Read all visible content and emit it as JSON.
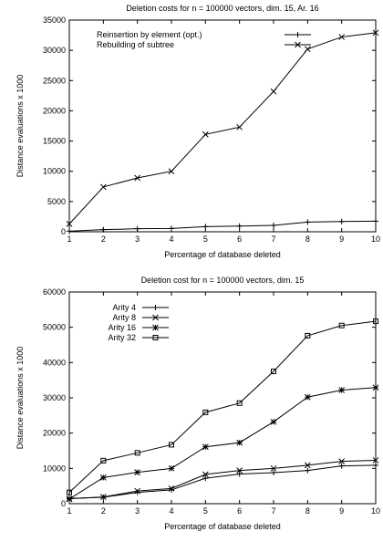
{
  "chart_data": [
    {
      "type": "line",
      "title": "Deletion costs for n = 100000 vectors, dim. 15, Ar. 16",
      "xlabel": "Percentage of database deleted",
      "ylabel": "Distance evaluations  x 1000",
      "x": [
        1,
        2,
        3,
        4,
        5,
        6,
        7,
        8,
        9,
        10
      ],
      "xlim": [
        1,
        10
      ],
      "ylim": [
        0,
        35000
      ],
      "yticks": [
        0,
        5000,
        10000,
        15000,
        20000,
        25000,
        30000,
        35000
      ],
      "grid": false,
      "legend_position": "top-right",
      "series": [
        {
          "name": "Reinsertion by element (opt.)",
          "marker": "plus",
          "values": [
            100,
            350,
            500,
            550,
            850,
            950,
            1050,
            1600,
            1700,
            1750
          ]
        },
        {
          "name": "Rebuilding of subtree",
          "marker": "cross",
          "values": [
            1300,
            7400,
            8900,
            10000,
            16100,
            17300,
            23200,
            30200,
            32200,
            32900
          ]
        }
      ]
    },
    {
      "type": "line",
      "title": "Deletion cost for n = 100000 vectors, dim. 15",
      "xlabel": "Percentage of database deleted",
      "ylabel": "Distance evaluations  x 1000",
      "x": [
        1,
        2,
        3,
        4,
        5,
        6,
        7,
        8,
        9,
        10
      ],
      "xlim": [
        1,
        10
      ],
      "ylim": [
        0,
        60000
      ],
      "yticks": [
        0,
        10000,
        20000,
        30000,
        40000,
        50000,
        60000
      ],
      "grid": false,
      "legend_position": "top-left",
      "series": [
        {
          "name": "Arity 4",
          "marker": "plus",
          "values": [
            1500,
            1800,
            3200,
            3900,
            7200,
            8400,
            8800,
            9400,
            10700,
            10900
          ]
        },
        {
          "name": "Arity 8",
          "marker": "cross",
          "values": [
            1400,
            1900,
            3600,
            4300,
            8300,
            9400,
            10000,
            10900,
            12000,
            12300
          ]
        },
        {
          "name": "Arity 16",
          "marker": "star",
          "values": [
            1300,
            7400,
            8900,
            10000,
            16100,
            17300,
            23200,
            30200,
            32200,
            32900
          ]
        },
        {
          "name": "Arity 32",
          "marker": "square",
          "values": [
            3200,
            12200,
            14400,
            16700,
            25900,
            28500,
            37500,
            47600,
            50500,
            51700
          ]
        }
      ]
    }
  ]
}
